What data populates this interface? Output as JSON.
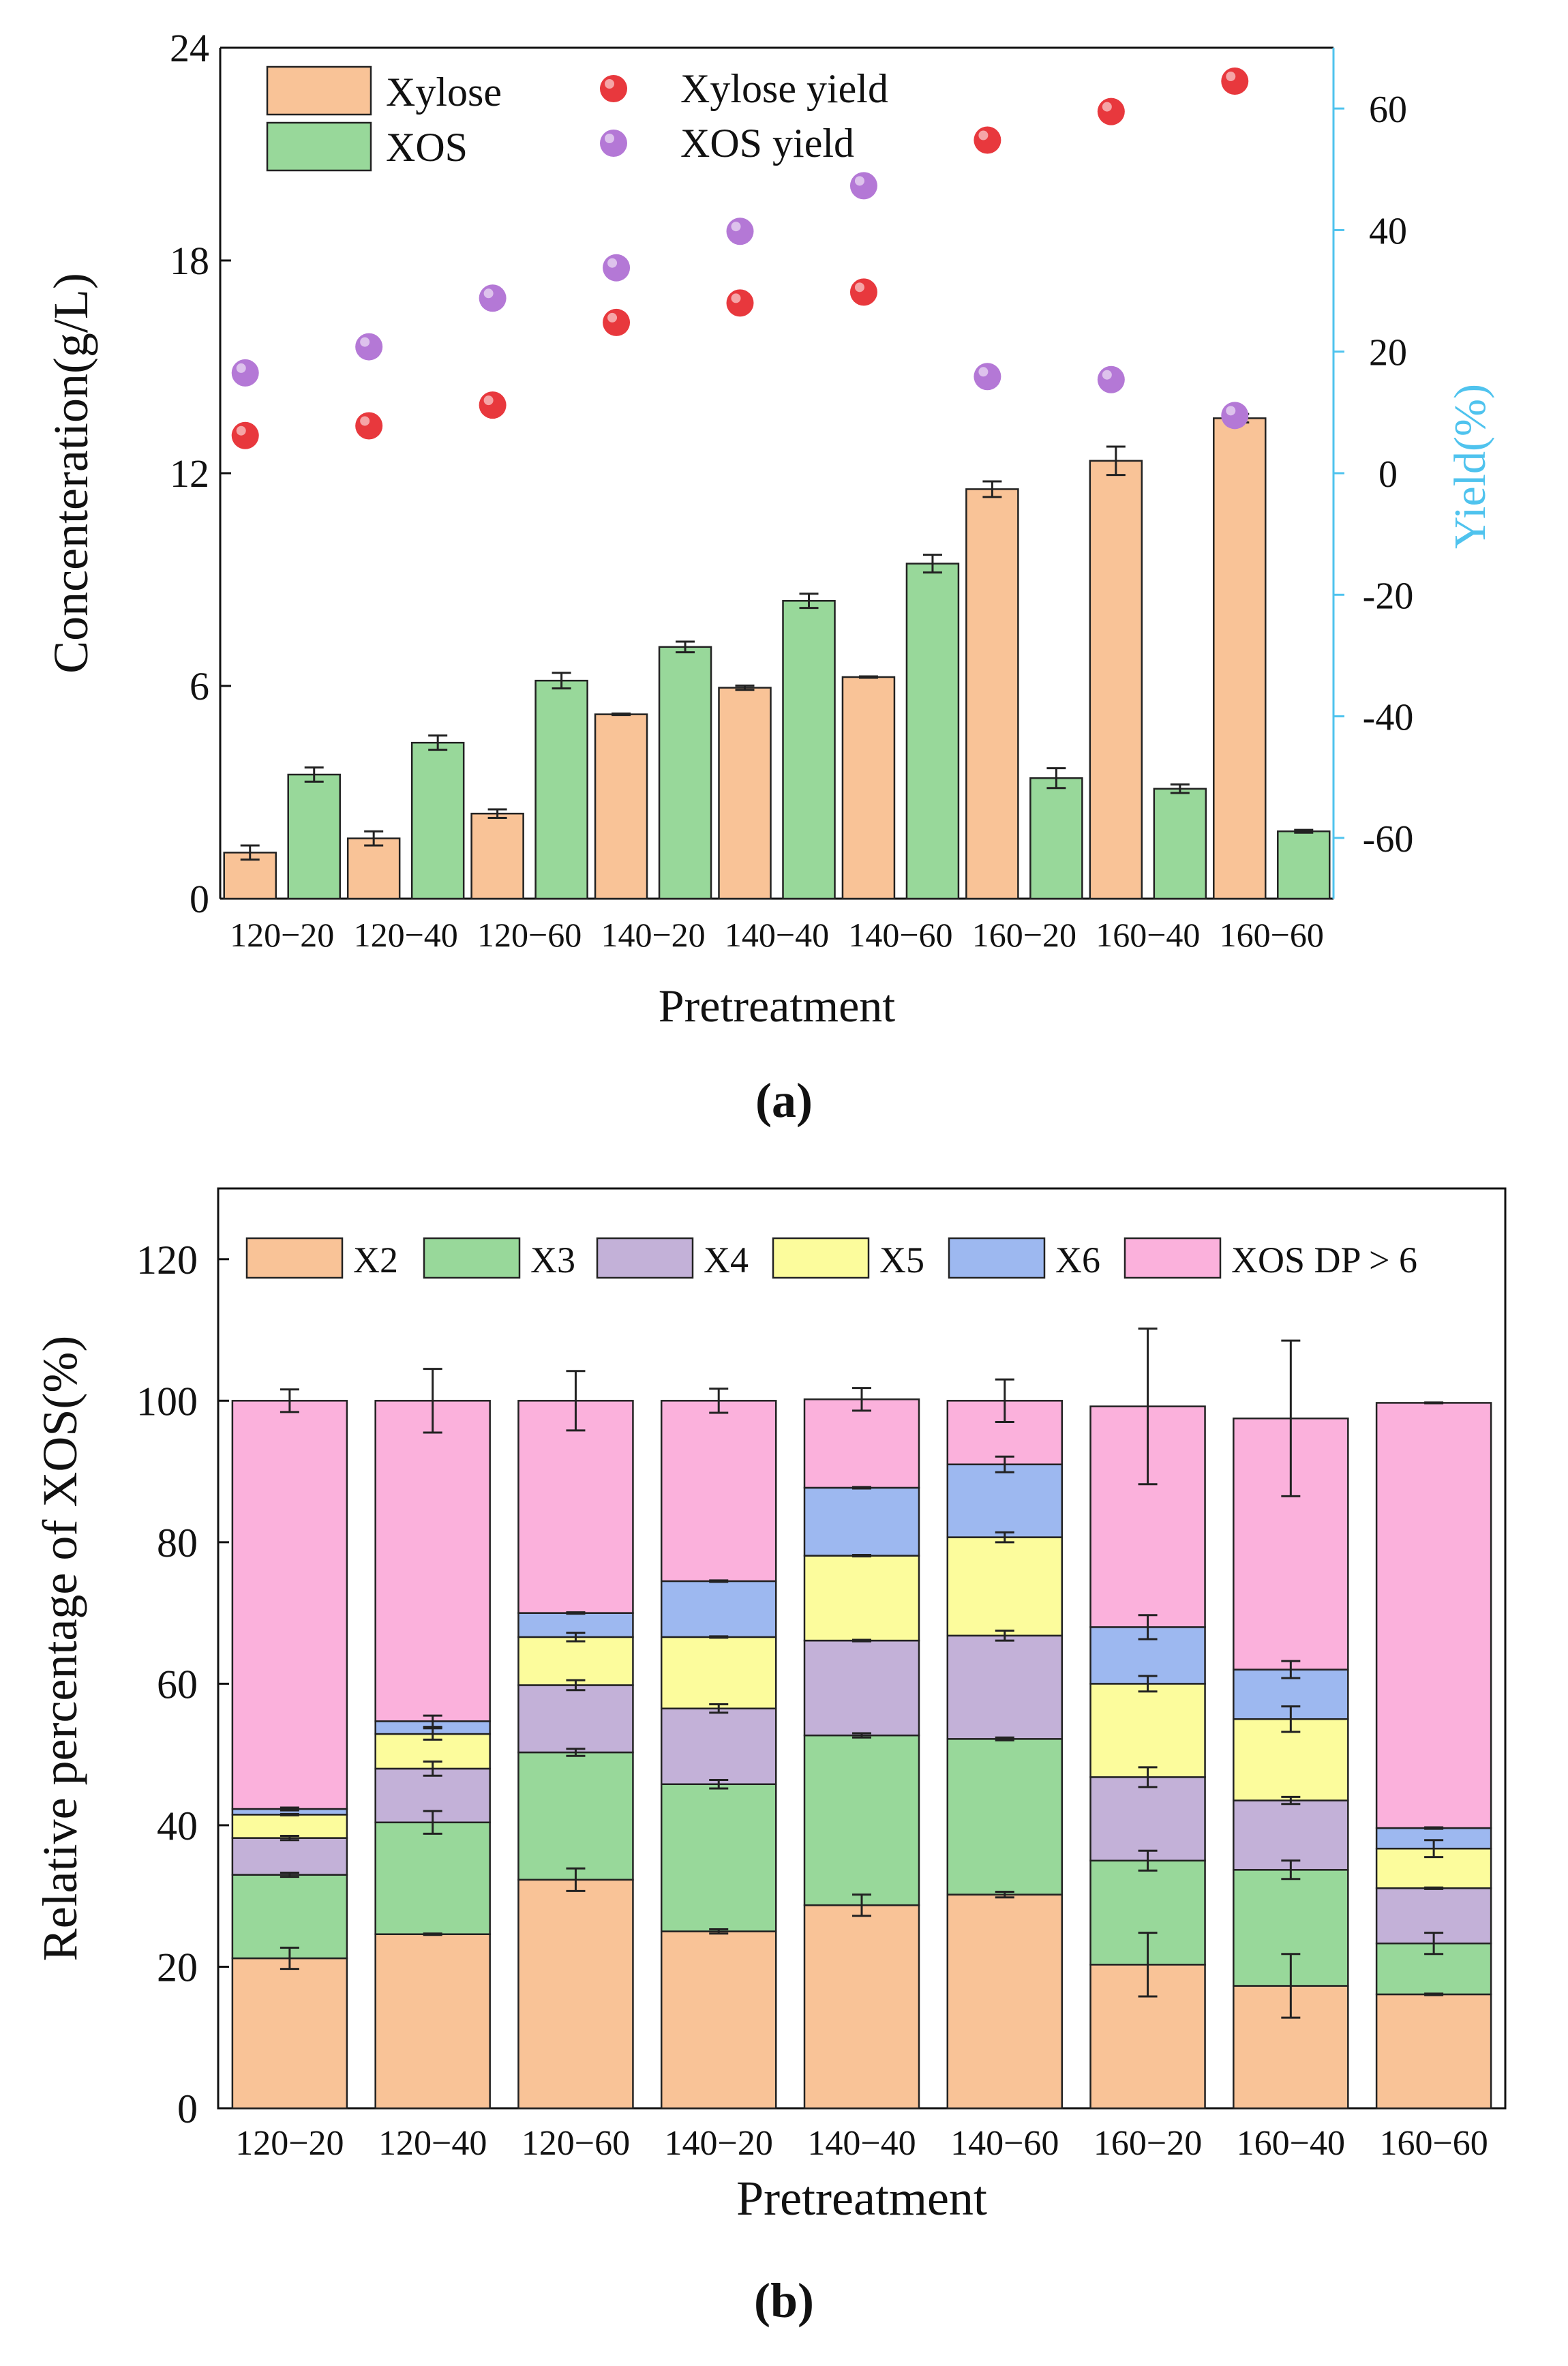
{
  "colors": {
    "xylose": "#F9C397",
    "xos": "#98D89A",
    "xylose_yield": "#E8383D",
    "xos_yield": "#B478D6",
    "right_axis": "#4FC3EE",
    "X2": "#F9C397",
    "X3": "#98D89A",
    "X4": "#C3B1D8",
    "X5": "#FCFC9C",
    "X6": "#9DB8F0",
    "DP6": "#FBB1DC"
  },
  "chart_data": [
    {
      "panel_label": "(a)",
      "type": "bar",
      "title": "",
      "xlabel": "Pretreatment",
      "ylabel": "Concenteration(g/L)",
      "y2label": "Yield(%)",
      "categories": [
        "120−20",
        "120−40",
        "120−60",
        "140−20",
        "140−40",
        "140−60",
        "160−20",
        "160−40",
        "160−60"
      ],
      "ylim": [
        0,
        24
      ],
      "yticks": [
        "0",
        "6",
        "12",
        "18",
        "24"
      ],
      "y2lim": [
        -70,
        70
      ],
      "y2ticks": [
        "-60",
        "-40",
        "-20",
        "0",
        "20",
        "40",
        "60"
      ],
      "series": [
        {
          "name": "Xylose",
          "kind": "bar",
          "values": [
            1.3,
            1.7,
            2.4,
            5.2,
            5.95,
            6.25,
            11.55,
            12.35,
            13.55
          ],
          "errors": [
            0.2,
            0.2,
            0.12,
            0.02,
            0.06,
            0.02,
            0.22,
            0.4,
            0.12
          ]
        },
        {
          "name": "XOS",
          "kind": "bar",
          "values": [
            3.5,
            4.4,
            6.15,
            7.1,
            8.4,
            9.45,
            3.4,
            3.1,
            1.9
          ],
          "errors": [
            0.2,
            0.2,
            0.22,
            0.15,
            0.2,
            0.25,
            0.28,
            0.12,
            0.04
          ]
        },
        {
          "name": "Xylose yield",
          "kind": "scatter",
          "axis": "right",
          "values": [
            6.2,
            7.8,
            11.2,
            24.8,
            28.0,
            29.8,
            54.8,
            59.5,
            64.5
          ]
        },
        {
          "name": "XOS yield",
          "kind": "scatter",
          "axis": "right",
          "values": [
            16.5,
            20.8,
            28.8,
            33.8,
            39.8,
            47.3,
            15.9,
            15.4,
            9.5
          ]
        }
      ],
      "legend": [
        "Xylose",
        "XOS",
        "Xylose yield",
        "XOS yield"
      ],
      "legend_placement": "top-left"
    },
    {
      "panel_label": "(b)",
      "type": "bar",
      "stacked": true,
      "title": "",
      "xlabel": "Pretreatment",
      "ylabel": "Relative percentage of XOS(%)",
      "categories": [
        "120−20",
        "120−40",
        "120−60",
        "140−20",
        "140−40",
        "140−60",
        "160−20",
        "160−40",
        "160−60"
      ],
      "ylim": [
        0,
        130
      ],
      "yticks": [
        "0",
        "20",
        "40",
        "60",
        "80",
        "100",
        "120"
      ],
      "series": [
        {
          "name": "X2",
          "values": [
            21.2,
            24.6,
            32.3,
            25.0,
            28.7,
            30.2,
            20.3,
            17.3,
            16.1
          ],
          "errors": [
            1.5,
            0.1,
            1.6,
            0.3,
            1.5,
            0.4,
            4.5,
            4.5,
            0.1
          ]
        },
        {
          "name": "X3",
          "values": [
            11.8,
            15.8,
            18.0,
            20.8,
            24.0,
            22.0,
            14.7,
            16.4,
            7.2
          ],
          "errors": [
            0.3,
            1.6,
            0.5,
            0.6,
            0.3,
            0.2,
            1.4,
            1.3,
            1.5
          ]
        },
        {
          "name": "X4",
          "values": [
            5.2,
            7.6,
            9.5,
            10.7,
            13.4,
            14.6,
            11.8,
            9.8,
            7.8
          ],
          "errors": [
            0.3,
            1.0,
            0.7,
            0.6,
            0.1,
            0.7,
            1.4,
            0.5,
            0.1
          ]
        },
        {
          "name": "X5",
          "values": [
            3.3,
            4.9,
            6.8,
            10.1,
            12.0,
            13.9,
            13.2,
            11.5,
            5.6
          ],
          "errors": [
            0.1,
            0.8,
            0.6,
            0.1,
            0.1,
            0.7,
            1.1,
            1.8,
            1.2
          ]
        },
        {
          "name": "X6",
          "values": [
            0.8,
            1.8,
            3.4,
            7.9,
            9.6,
            10.3,
            8.0,
            7.0,
            2.9
          ],
          "errors": [
            0.2,
            0.8,
            0.1,
            0.1,
            0.1,
            1.1,
            1.7,
            1.2,
            0.1
          ]
        },
        {
          "name": "XOS DP > 6",
          "values": [
            57.7,
            45.3,
            30.0,
            25.5,
            12.5,
            9.0,
            31.2,
            35.5,
            60.1
          ],
          "errors": [
            1.6,
            4.5,
            4.2,
            1.7,
            1.6,
            3.0,
            11.0,
            11.0,
            0.05
          ]
        }
      ],
      "legend": [
        "X2",
        "X3",
        "X4",
        "X5",
        "X6",
        "XOS DP > 6"
      ],
      "legend_placement": "top"
    }
  ]
}
